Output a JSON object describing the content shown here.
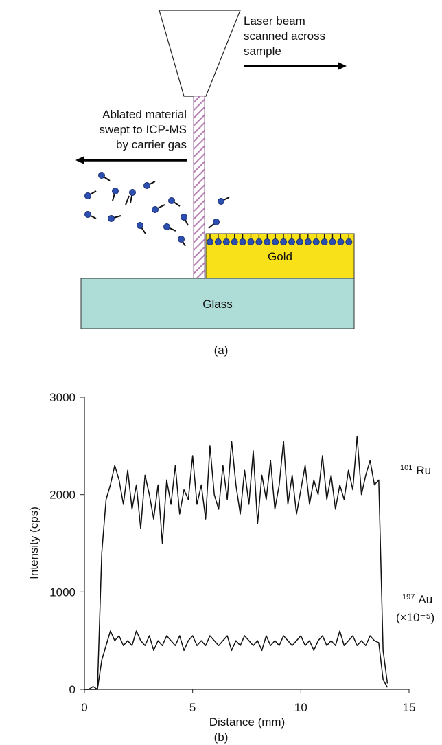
{
  "diagram": {
    "laser_text": [
      "Laser beam",
      "scanned across",
      "sample"
    ],
    "ablated_text": [
      "Ablated material",
      "swept to ICP-MS",
      "by carrier gas"
    ],
    "gold": "Gold",
    "glass": "Glass",
    "caption": "(a)"
  },
  "chart_data": {
    "type": "line",
    "caption": "(b)",
    "x_label": "Distance (mm)",
    "y_label": "Intensity (cps)",
    "xlim": [
      0,
      15
    ],
    "xticks": [
      0,
      5,
      10,
      15
    ],
    "ylim": [
      0,
      3000
    ],
    "yticks": [
      0,
      1000,
      2000,
      3000
    ],
    "x": [
      0,
      0.2,
      0.4,
      0.6,
      0.8,
      1.0,
      1.2,
      1.4,
      1.6,
      1.8,
      2.0,
      2.2,
      2.4,
      2.6,
      2.8,
      3.0,
      3.2,
      3.4,
      3.6,
      3.8,
      4.0,
      4.2,
      4.4,
      4.6,
      4.8,
      5.0,
      5.2,
      5.4,
      5.6,
      5.8,
      6.0,
      6.2,
      6.4,
      6.6,
      6.8,
      7.0,
      7.2,
      7.4,
      7.6,
      7.8,
      8.0,
      8.2,
      8.4,
      8.6,
      8.8,
      9.0,
      9.2,
      9.4,
      9.6,
      9.8,
      10.0,
      10.2,
      10.4,
      10.6,
      10.8,
      11.0,
      11.2,
      11.4,
      11.6,
      11.8,
      12.0,
      12.2,
      12.4,
      12.6,
      12.8,
      13.0,
      13.2,
      13.4,
      13.6,
      13.8,
      14.0
    ],
    "series": [
      {
        "name": "Ru",
        "mass": "101",
        "color": "#111111",
        "values": [
          0,
          0,
          30,
          0,
          1400,
          1950,
          2100,
          2300,
          2150,
          1900,
          2250,
          1850,
          2100,
          1650,
          2200,
          2000,
          1750,
          2100,
          1500,
          2150,
          1900,
          2300,
          1800,
          2050,
          1950,
          2400,
          1900,
          2100,
          1750,
          2500,
          2000,
          1850,
          2300,
          1950,
          2550,
          2100,
          1800,
          2250,
          1900,
          2450,
          1700,
          2200,
          1950,
          2350,
          1850,
          2100,
          2550,
          1900,
          2200,
          1800,
          2050,
          2300,
          1900,
          2150,
          2000,
          2400,
          1950,
          2200,
          1850,
          2100,
          1950,
          2250,
          2050,
          2600,
          2000,
          2200,
          2350,
          2100,
          2150,
          400,
          60
        ]
      },
      {
        "name": "Au",
        "mass": "197",
        "note": "(×10⁻⁵)",
        "color": "#111111",
        "values": [
          0,
          0,
          0,
          0,
          300,
          450,
          600,
          500,
          550,
          450,
          500,
          450,
          600,
          500,
          450,
          550,
          400,
          500,
          450,
          550,
          500,
          450,
          550,
          400,
          500,
          550,
          450,
          500,
          450,
          550,
          500,
          450,
          500,
          550,
          400,
          500,
          450,
          550,
          500,
          450,
          500,
          400,
          550,
          450,
          500,
          450,
          550,
          500,
          450,
          500,
          550,
          450,
          500,
          400,
          500,
          550,
          450,
          500,
          450,
          600,
          450,
          500,
          550,
          450,
          500,
          450,
          550,
          500,
          480,
          100,
          20
        ]
      }
    ]
  }
}
